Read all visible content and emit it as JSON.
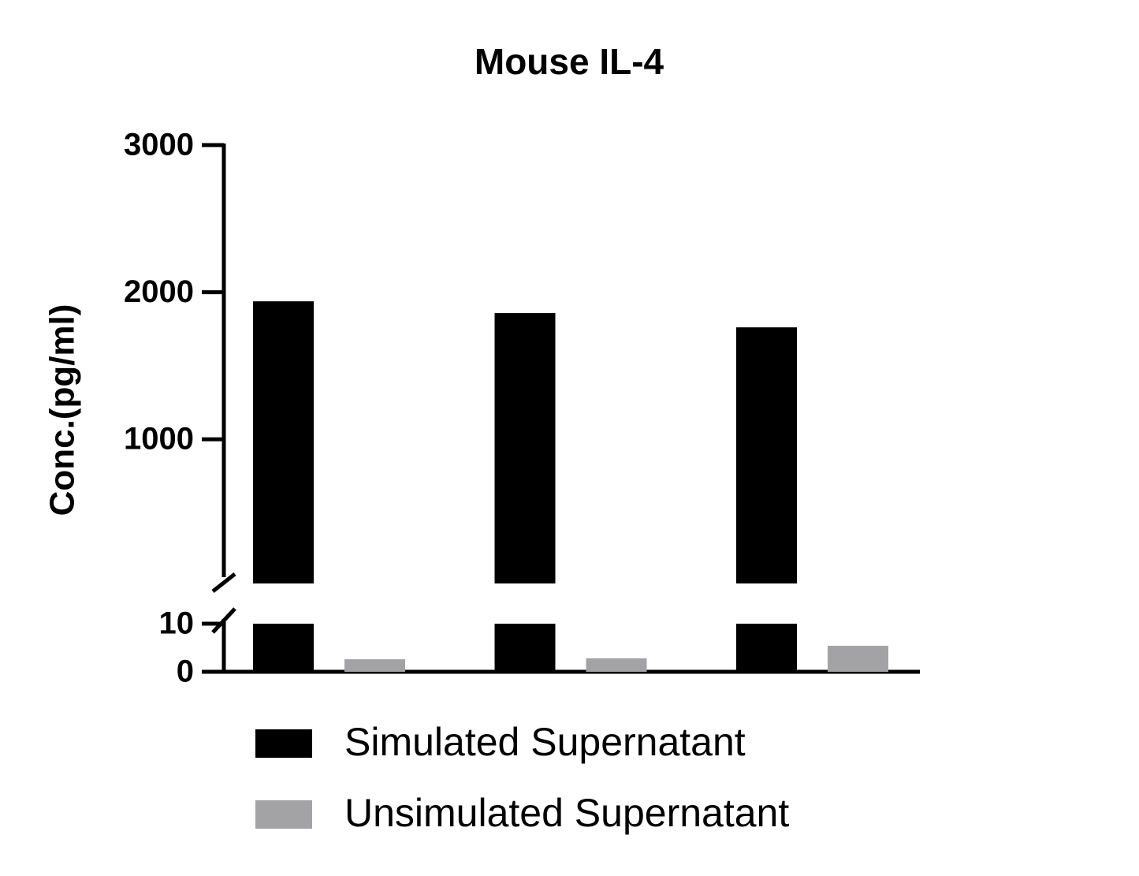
{
  "chart_data": {
    "type": "bar",
    "title": "Mouse IL-4",
    "y_label": "Conc.(pg/ml)",
    "categories": [
      null,
      null,
      null
    ],
    "series": [
      {
        "name": "Simulated Supernatant",
        "color": "#000000",
        "values": [
          1938,
          1858,
          1761
        ]
      },
      {
        "name": "Unsimulated Supernatant",
        "color": "#a3a3a6",
        "values": [
          2.6,
          2.8,
          5.4
        ]
      }
    ],
    "y_segments": [
      {
        "ylim": [
          0,
          10
        ],
        "yticks": [
          0,
          10
        ]
      },
      {
        "ylim": [
          20,
          3000
        ],
        "yticks": [
          1000,
          2000,
          3000
        ]
      }
    ],
    "grid": false
  }
}
